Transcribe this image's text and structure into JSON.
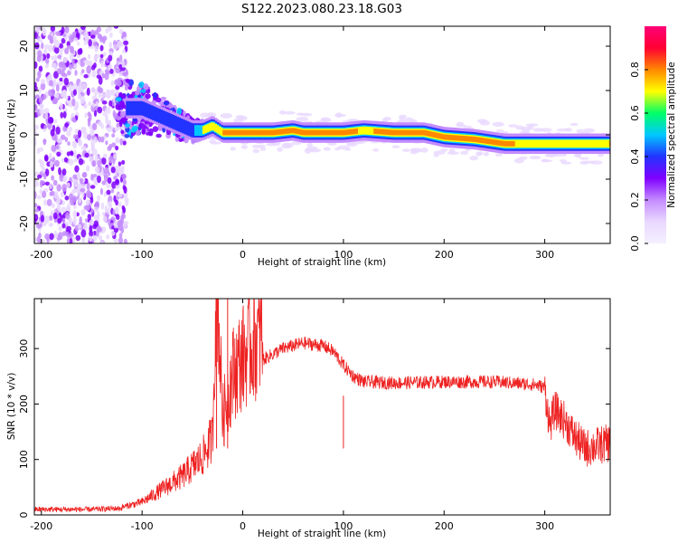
{
  "title": "S122.2023.080.23.18.G03",
  "colors": {
    "snr_line": "#ee2222",
    "colormap": [
      "#f5f0ff",
      "#e9d8ff",
      "#c48cff",
      "#8000ff",
      "#2233ff",
      "#00c8ff",
      "#00ff66",
      "#ffff00",
      "#ff8800",
      "#ff0033",
      "#ff0077"
    ]
  },
  "chart_data": [
    {
      "type": "heatmap",
      "title": "S122.2023.080.23.18.G03",
      "xlabel": "Height of straight line (km)",
      "ylabel": "Frequency (Hz)",
      "xlim": [
        -207,
        365
      ],
      "ylim": [
        -24.5,
        24.5
      ],
      "xticks": [
        -200,
        -100,
        0,
        100,
        200,
        300
      ],
      "xtick_labels": [
        "-200",
        "-100",
        "0",
        "100",
        "200",
        "300"
      ],
      "yticks": [
        -20,
        -10,
        0,
        10,
        20
      ],
      "ytick_labels": [
        "-20",
        "-10",
        "0",
        "10",
        "20"
      ],
      "colorbar": {
        "label": "Normalized spectral amplitude",
        "range": [
          0,
          1
        ],
        "ticks": [
          0.0,
          0.2,
          0.4,
          0.6,
          0.8
        ],
        "tick_labels": [
          "0.0",
          "0.2",
          "0.4",
          "0.6",
          "0.8"
        ]
      },
      "ridge": {
        "x": [
          -115,
          -100,
          -90,
          -80,
          -70,
          -60,
          -50,
          -40,
          -30,
          -20,
          0,
          30,
          50,
          60,
          80,
          100,
          120,
          150,
          180,
          200,
          230,
          260,
          300,
          330,
          365
        ],
        "frequency": [
          6,
          6,
          5,
          4,
          3,
          2,
          1,
          1,
          2,
          0.5,
          0.5,
          0.5,
          1,
          0.5,
          0.5,
          0.5,
          1,
          0.5,
          0.5,
          -0.5,
          -1,
          -2,
          -2,
          -2,
          -2
        ],
        "amplitude": [
          0.3,
          0.35,
          0.35,
          0.4,
          0.35,
          0.3,
          0.4,
          0.6,
          0.7,
          0.75,
          0.85,
          0.85,
          0.85,
          0.8,
          0.85,
          0.85,
          0.7,
          0.85,
          0.8,
          0.8,
          0.75,
          0.8,
          0.6,
          0.6,
          0.75
        ]
      }
    },
    {
      "type": "line",
      "xlabel": "Height of straight line (km)",
      "ylabel": "SNR (10 * v/v)",
      "xlim": [
        -207,
        365
      ],
      "ylim": [
        0,
        390
      ],
      "xticks": [
        -200,
        -100,
        0,
        100,
        200,
        300
      ],
      "xtick_labels": [
        "-200",
        "-100",
        "0",
        "100",
        "200",
        "300"
      ],
      "yticks": [
        0,
        100,
        200,
        300
      ],
      "ytick_labels": [
        "0",
        "100",
        "200",
        "300"
      ],
      "series": [
        {
          "x": [
            -207,
            -150,
            -120,
            -100,
            -80,
            -60,
            -40,
            -30,
            -26,
            -20,
            -10,
            0,
            10,
            20,
            40,
            60,
            80,
            90,
            100,
            110,
            120,
            150,
            200,
            250,
            290,
            300,
            305,
            310,
            320,
            330,
            340,
            365
          ],
          "snr": [
            10,
            10,
            12,
            20,
            40,
            60,
            90,
            120,
            390,
            150,
            220,
            245,
            265,
            280,
            300,
            310,
            305,
            295,
            270,
            250,
            240,
            238,
            240,
            240,
            235,
            230,
            160,
            190,
            170,
            140,
            120,
            130
          ]
        }
      ]
    }
  ]
}
